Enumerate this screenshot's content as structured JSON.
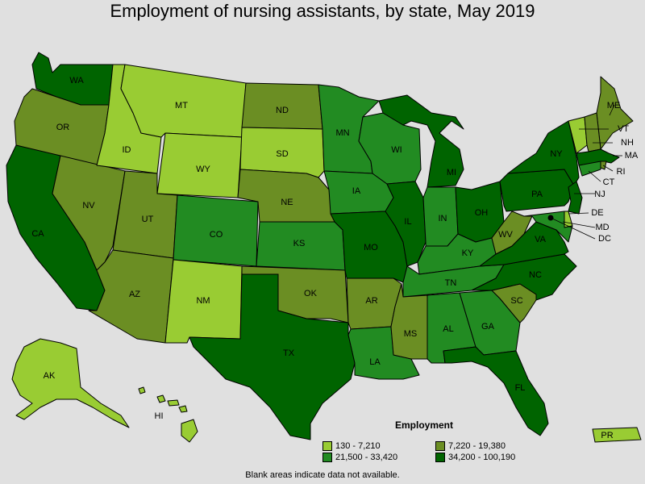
{
  "title": "Employment of nursing assistants, by state, May 2019",
  "colors": {
    "c1": "#99cc33",
    "c2": "#6b8e23",
    "c3": "#228b22",
    "c4": "#006400",
    "background": "#e0e0e0"
  },
  "legend": {
    "title": "Employment",
    "items": [
      {
        "label": "130 - 7,210",
        "color": "#99cc33"
      },
      {
        "label": "7,220 - 19,380",
        "color": "#6b8e23"
      },
      {
        "label": "21,500 - 33,420",
        "color": "#228b22"
      },
      {
        "label": "34,200 - 100,190",
        "color": "#006400"
      }
    ]
  },
  "note": "Blank areas indicate data not available.",
  "states": {
    "WA": "WA",
    "OR": "OR",
    "CA": "CA",
    "NV": "NV",
    "ID": "ID",
    "MT": "MT",
    "WY": "WY",
    "UT": "UT",
    "AZ": "AZ",
    "CO": "CO",
    "NM": "NM",
    "ND": "ND",
    "SD": "SD",
    "NE": "NE",
    "KS": "KS",
    "OK": "OK",
    "TX": "TX",
    "MN": "MN",
    "IA": "IA",
    "MO": "MO",
    "AR": "AR",
    "LA": "LA",
    "WI": "WI",
    "IL": "IL",
    "MI": "MI",
    "IN": "IN",
    "OH": "OH",
    "KY": "KY",
    "TN": "TN",
    "MS": "MS",
    "AL": "AL",
    "GA": "GA",
    "FL": "FL",
    "SC": "SC",
    "NC": "NC",
    "VA": "VA",
    "WV": "WV",
    "PA": "PA",
    "NY": "NY",
    "ME": "ME",
    "VT": "VT",
    "NH": "NH",
    "MA": "MA",
    "RI": "RI",
    "CT": "CT",
    "NJ": "NJ",
    "DE": "DE",
    "MD": "MD",
    "DC": "DC",
    "AK": "AK",
    "HI": "HI",
    "PR": "PR"
  }
}
